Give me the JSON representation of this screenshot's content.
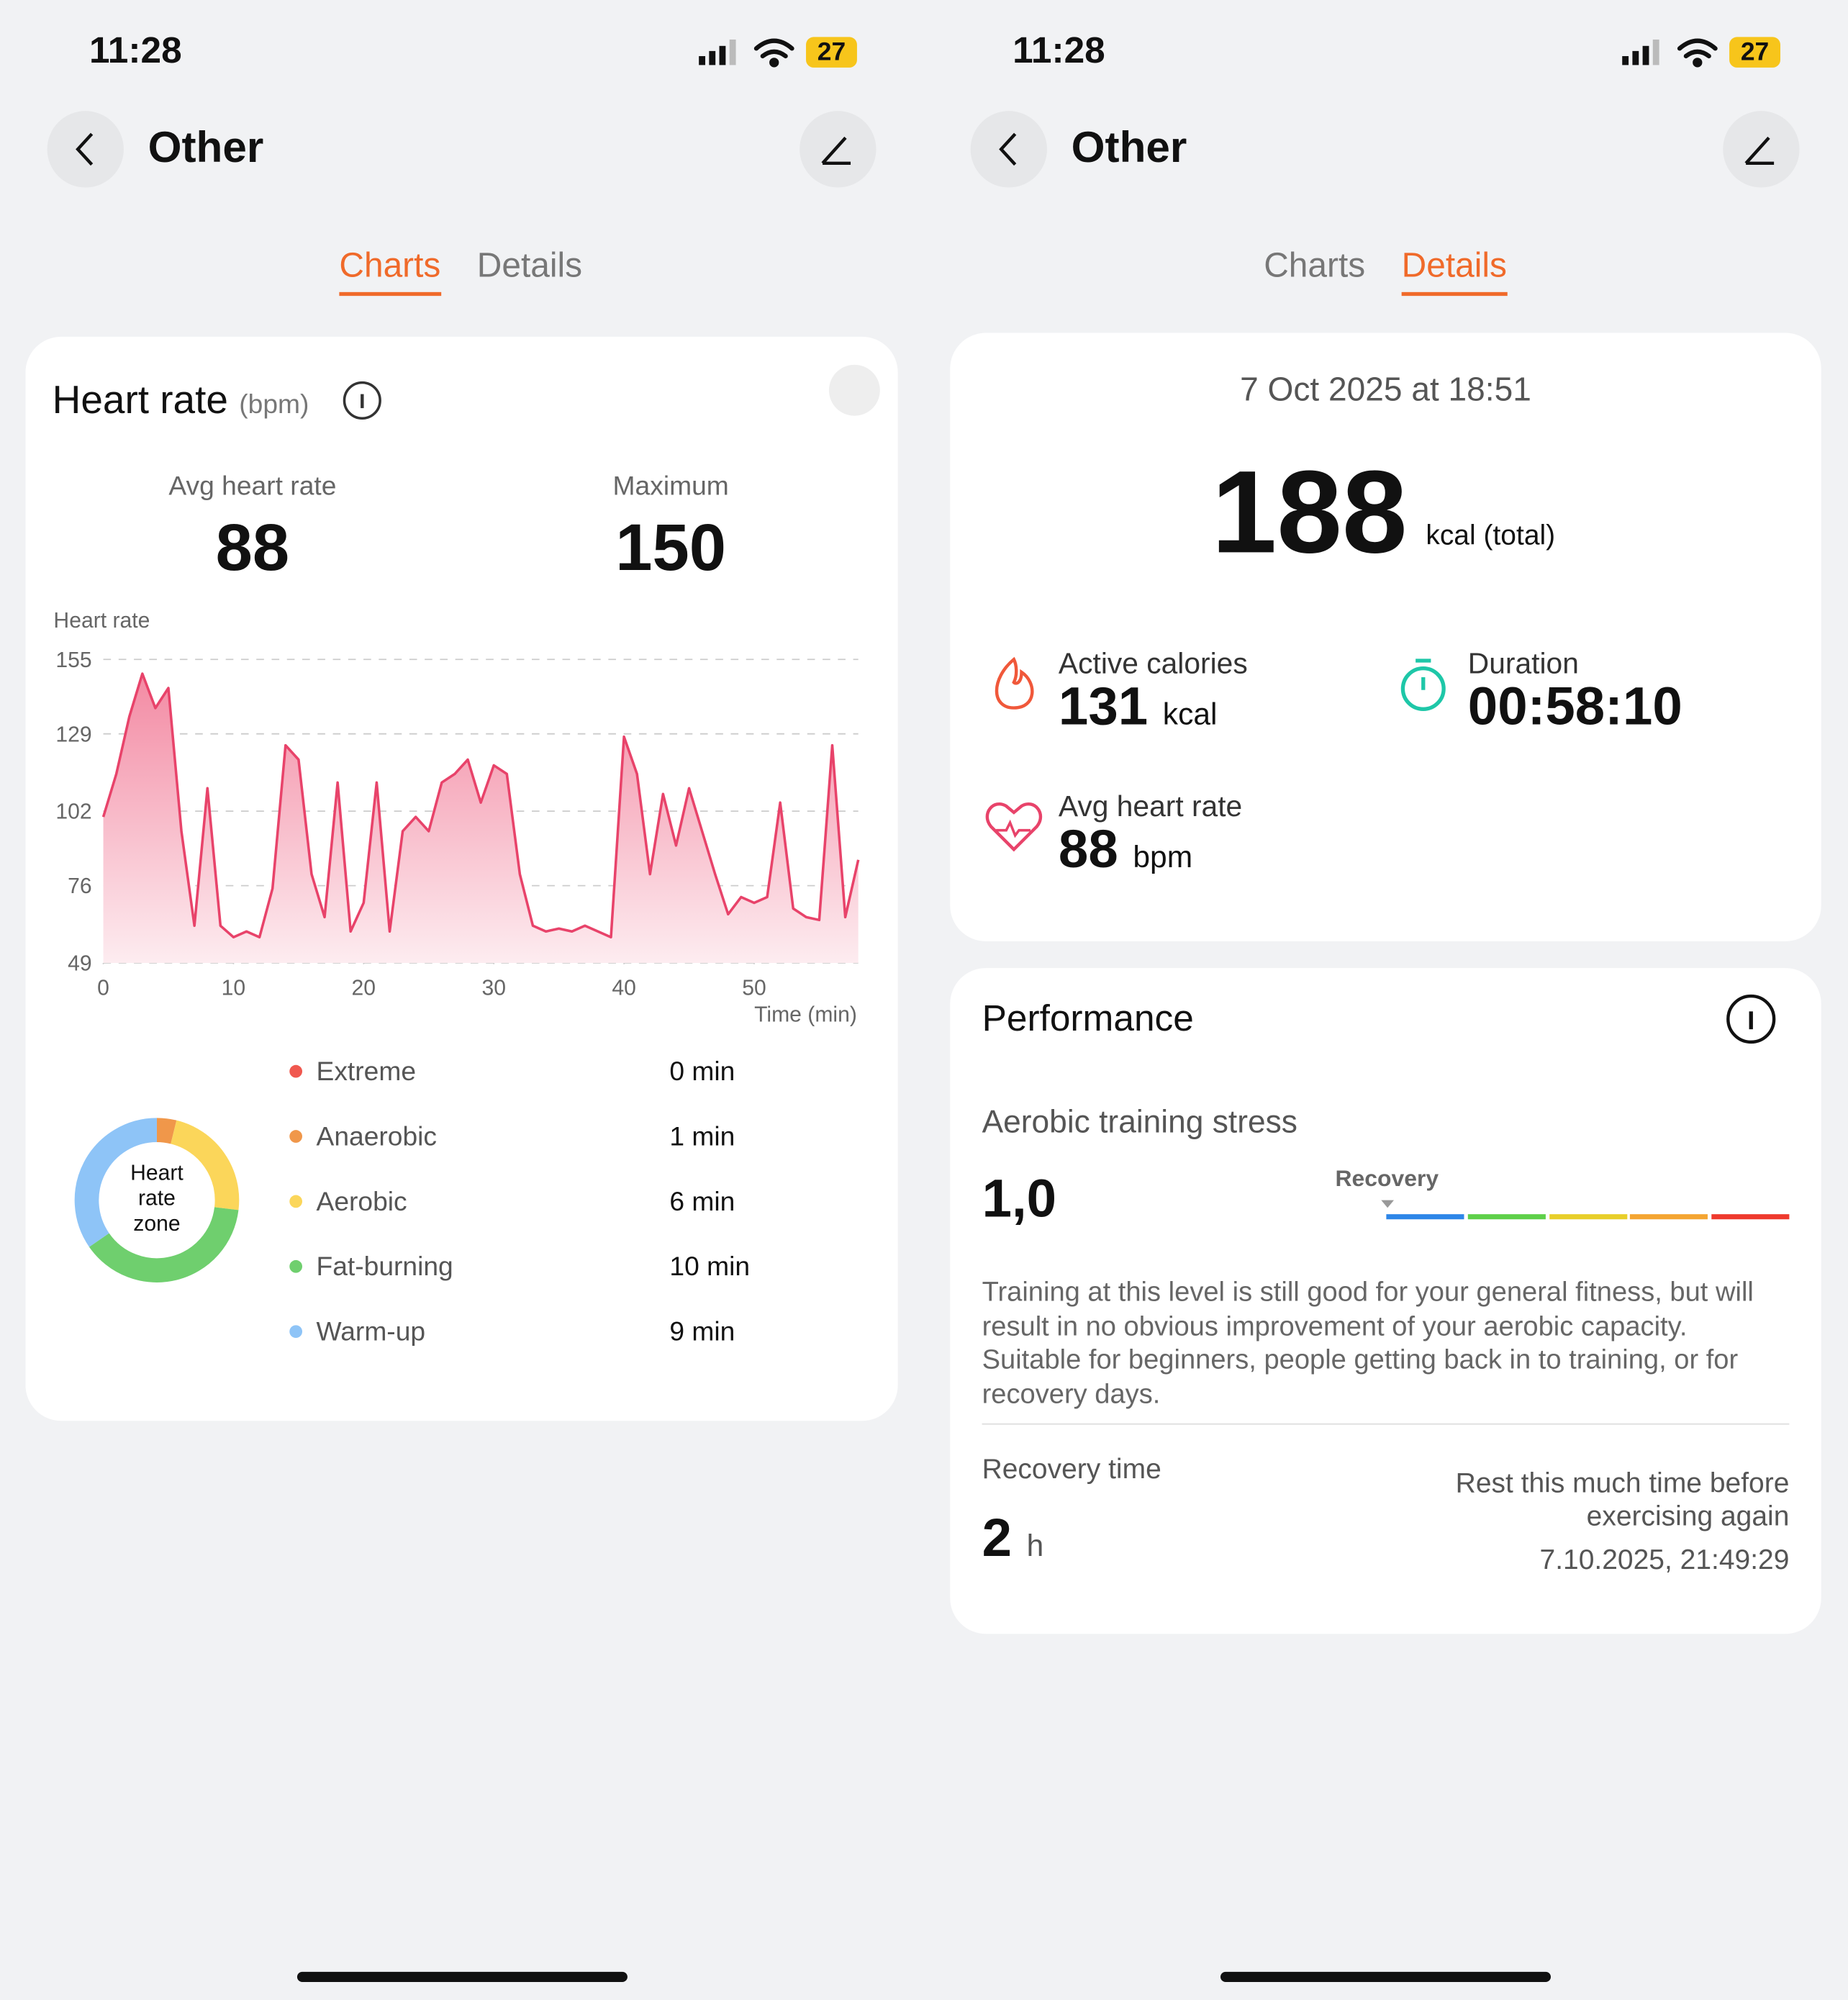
{
  "screens": [
    {
      "status_bar": {
        "time": "11:28",
        "battery": "27"
      },
      "header": {
        "title": "Other"
      },
      "tabs": [
        "Charts",
        "Details"
      ],
      "card": {
        "title": "Heart rate",
        "unit": "(bpm)",
        "avg_label": "Avg heart rate",
        "avg_value": 88,
        "max_label": "Maximum",
        "max_value": 150
      }
    },
    {
      "status_bar": {
        "time": "11:28",
        "battery": "27"
      },
      "header": {
        "title": "Other"
      },
      "tabs": [
        "Charts",
        "Details"
      ],
      "summary": {
        "date": "7 Oct 2025 at 18:51",
        "total": 188,
        "total_unit": "kcal (total)",
        "active_label": "Active calories",
        "active_value": 131,
        "active_unit": "kcal",
        "duration_label": "Duration",
        "duration_value": "00:58:10",
        "avg_label": "Avg heart rate",
        "avg_value": 88,
        "avg_unit": "bpm"
      },
      "performance": {
        "title": "Performance",
        "stress_label": "Aerobic training stress",
        "stress_value": "1,0",
        "scale_label": "Recovery",
        "description": "Training at this level is still good for your general fitness, but will result in no obvious improvement of your aerobic capacity. Suitable for beginners, people getting back in to training, or for recovery days.",
        "recovery_label": "Recovery time",
        "recovery_value": 2,
        "recovery_unit": "h",
        "recovery_note": "Rest this much time before exercising again",
        "recovery_until": "7.10.2025, 21:49:29"
      }
    }
  ],
  "chart_data": [
    {
      "type": "line",
      "y_label": "Heart rate",
      "x_label": "Time (min)",
      "color": "#e8436a",
      "grid": true,
      "xlim": [
        0,
        58
      ],
      "xticks": [
        0,
        10,
        20,
        30,
        40,
        50
      ],
      "ylim": [
        49,
        155
      ],
      "yticks": [
        155,
        129,
        102,
        76,
        49
      ],
      "x": [
        0,
        1,
        2,
        3,
        4,
        5,
        6,
        7,
        8,
        9,
        10,
        11,
        12,
        13,
        14,
        15,
        16,
        17,
        18,
        19,
        20,
        21,
        22,
        23,
        24,
        25,
        26,
        27,
        28,
        29,
        30,
        31,
        32,
        33,
        34,
        35,
        36,
        37,
        38,
        39,
        40,
        41,
        42,
        43,
        44,
        45,
        46,
        47,
        48,
        49,
        50,
        51,
        52,
        53,
        54,
        55,
        56,
        57,
        58
      ],
      "values": [
        100,
        115,
        135,
        150,
        138,
        145,
        95,
        62,
        110,
        62,
        58,
        60,
        58,
        75,
        125,
        120,
        80,
        65,
        112,
        60,
        70,
        112,
        60,
        95,
        100,
        95,
        112,
        115,
        120,
        105,
        118,
        115,
        80,
        62,
        60,
        61,
        60,
        62,
        60,
        58,
        128,
        115,
        80,
        108,
        90,
        110,
        95,
        80,
        66,
        72,
        70,
        72,
        105,
        68,
        65,
        64,
        125,
        65,
        85
      ]
    },
    {
      "type": "donut",
      "title": "Heart rate zone",
      "categories": [
        "Extreme",
        "Anaerobic",
        "Aerobic",
        "Fat-burning",
        "Warm-up"
      ],
      "values": [
        0,
        1,
        6,
        10,
        9
      ],
      "value_labels": [
        "0 min",
        "1 min",
        "6 min",
        "10 min",
        "9 min"
      ],
      "colors": [
        "#f0584f",
        "#f0974a",
        "#fbd65a",
        "#6fcf6e",
        "#8ec4f7"
      ]
    }
  ]
}
